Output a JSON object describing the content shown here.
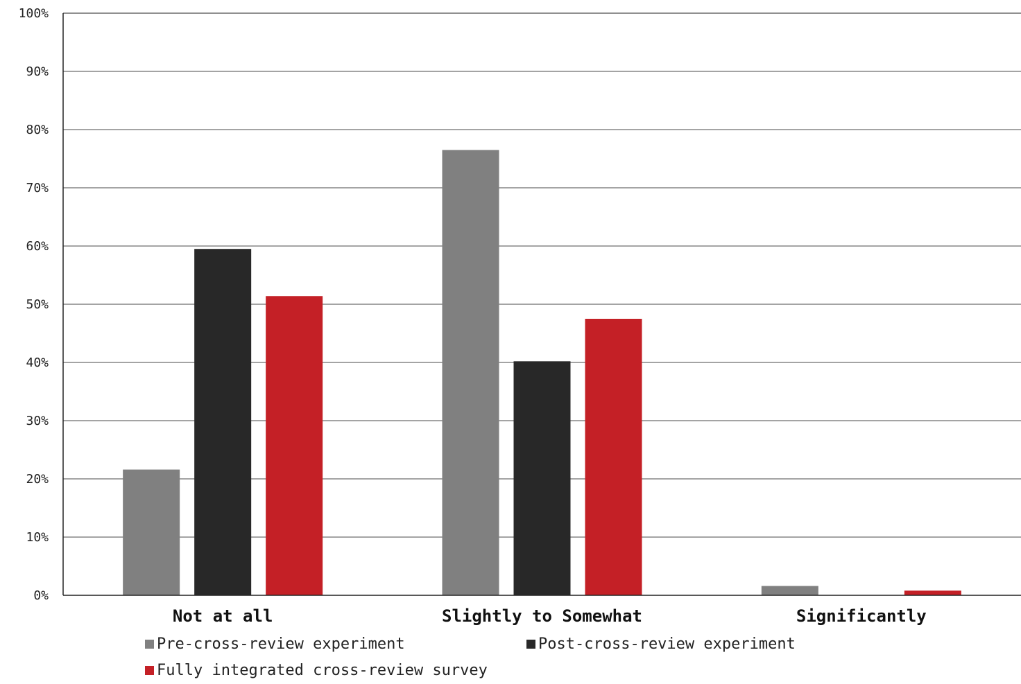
{
  "chart_data": {
    "type": "bar",
    "categories": [
      "Not at all",
      "Slightly to Somewhat",
      "Significantly"
    ],
    "series": [
      {
        "name": "Pre-cross-review experiment",
        "values": [
          21.6,
          76.5,
          1.6
        ],
        "color": "#808080"
      },
      {
        "name": "Post-cross-review experiment",
        "values": [
          59.5,
          40.2,
          0
        ],
        "color": "#282828"
      },
      {
        "name": "Fully integrated cross-review survey",
        "values": [
          51.4,
          47.5,
          0.8
        ],
        "color": "#c42026"
      }
    ],
    "ylim": [
      0,
      100
    ],
    "yticks": [
      "0%",
      "10%",
      "20%",
      "30%",
      "40%",
      "50%",
      "60%",
      "70%",
      "80%",
      "90%",
      "100%"
    ],
    "grid": true,
    "legend_position": "bottom"
  }
}
